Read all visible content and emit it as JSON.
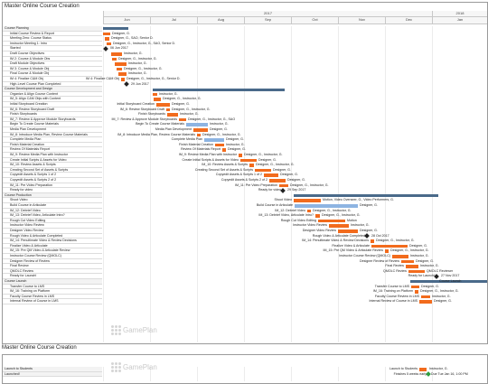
{
  "panel1": {
    "title": "Master Online Course Creation",
    "years": [
      "2017",
      "2018"
    ],
    "months": [
      "Jun",
      "Jul",
      "Aug",
      "Sep",
      "Oct",
      "Nov",
      "Dec",
      "Jan"
    ],
    "brand": "GamePlan",
    "rows": [
      {
        "label": "Course Planning",
        "level": 0
      },
      {
        "label": "Initial Course Review & Report",
        "level": 1,
        "bar": "orange",
        "text": "Designer, G."
      },
      {
        "label": "Meeting Zero: Course Status",
        "level": 1,
        "bar": "orange",
        "text": "Designer, G., SAO, Senior D."
      },
      {
        "label": "Instructor Meeting 1: Intro",
        "level": 1,
        "bar": "orange",
        "text": "Designer, G., Instructor, G., SAO, Senior D."
      },
      {
        "label": "Started",
        "level": 1,
        "ms": true,
        "text": "06 Jun 2017"
      },
      {
        "label": "Draft Course Objectives",
        "level": 1,
        "bar": "orange",
        "text": "Instructor, G."
      },
      {
        "label": "IM 2: Course & Module Obs",
        "level": 1,
        "bar": "orange",
        "text": "Designer, G., Instructor, G."
      },
      {
        "label": "Draft Module Objectives",
        "level": 1,
        "bar": "orange",
        "text": "Instructor, G."
      },
      {
        "label": "IM 3: Course & Module Obj",
        "level": 1,
        "bar": "orange",
        "text": "Designer, G., Instructor, G."
      },
      {
        "label": "Final Course & Module Obj",
        "level": 1,
        "bar": "orange",
        "text": "Instructor, G."
      },
      {
        "label": "IM 4: Finalize C&M Obj",
        "level": 1,
        "bar": "orange",
        "text": "Designer, G., Instructor, G., Senior D.",
        "left": "IM 4: Finalize C&M Obj"
      },
      {
        "label": "High-Level Course Plan Completed",
        "level": 1,
        "ms": true,
        "text": "29 Jun 2017"
      },
      {
        "label": "Course Development and Design",
        "level": 0
      },
      {
        "label": "Organize & Align Course Content",
        "level": 1,
        "bar": "orange",
        "text": "Instructor, G."
      },
      {
        "label": "IM_5: Align C&M Objs with Content",
        "level": 1,
        "bar": "orange",
        "text": "Designer, G., Instructor, G."
      },
      {
        "label": "Initial Storyboard Creation",
        "level": 1,
        "bar": "orange",
        "text": "Designer, G.",
        "left": "Initial Storyboard Creation"
      },
      {
        "label": "IM_6: Review Storyboard Draft",
        "level": 1,
        "bar": "orange",
        "text": "Designer, G., Instructor, G.",
        "left": "IM_6: Review Storyboard Draft"
      },
      {
        "label": "Finish Storyboards",
        "level": 1,
        "bar": "orange",
        "text": "Instructor, G.",
        "left": "Finish Storyboards"
      },
      {
        "label": "IM_7: Review & Approve Module Storyboards",
        "level": 1,
        "bar": "orange",
        "text": "Designer, G., Instructor, G., SAO",
        "left": "IM_7: Review & Approve Module Storyboards"
      },
      {
        "label": "Begin To Create Course Materials",
        "level": 1,
        "bar": "blue",
        "text": "Instructor, G.",
        "left": "Begin To Create Course Materials"
      },
      {
        "label": "Media Plan Development",
        "level": 1,
        "bar": "orange",
        "text": "Designer, G.",
        "left": "Media Plan Development"
      },
      {
        "label": "IM_8: Introduce Media Plan, Review Course Materials",
        "level": 1,
        "bar": "orange",
        "text": "Designer, G., Instructor, G.",
        "left": "IM_8: Introduce Media Plan, Review Course Materials"
      },
      {
        "label": "Complete Media Plan",
        "level": 1,
        "bar": "blue",
        "text": "Designer, G.",
        "left": "Complete Media Plan"
      },
      {
        "label": "Finish Material Creation",
        "level": 1,
        "bar": "orange",
        "text": "Instructor, G.",
        "left": "Finish Material Creation"
      },
      {
        "label": "Review Of Materials Report",
        "level": 1,
        "bar": "orange",
        "text": "Designer, G.",
        "left": "Review Of Materials Report"
      },
      {
        "label": "IM_9: Review Media Plan with Instructor",
        "level": 1,
        "bar": "orange",
        "text": "Designer, G., Instructor, G.",
        "left": "IM_9: Review Media Plan with Instructor"
      },
      {
        "label": "Create Initial Scripts & Assets for Video",
        "level": 1,
        "bar": "orange",
        "text": "Designer, G.",
        "left": "Create Initial Scripts & Assets for Video"
      },
      {
        "label": "IM_10: Review Assets & Scripts",
        "level": 1,
        "bar": "orange",
        "text": "Designer, G., Instructor, G.",
        "left": "IM_10: Review Assets & Scripts"
      },
      {
        "label": "Creating Second Set of Assets & Scripts",
        "level": 1,
        "bar": "orange",
        "text": "Designer, G.",
        "left": "Creating Second Set of Assets & Scripts"
      },
      {
        "label": "Copyedit Assets & Scripts 1 of 2",
        "level": 1,
        "bar": "orange",
        "text": "Designer, G.",
        "left": "Copyedit Assets & Scripts 1 of 2"
      },
      {
        "label": "Copyedit Assets & Scripts 2 of 2",
        "level": 1,
        "bar": "orange",
        "text": "Designer, G.",
        "left": "Copyedit Assets & Scripts 2 of 2"
      },
      {
        "label": "IM_11: Pre Video Preparation",
        "level": 1,
        "bar": "orange",
        "text": "Designer, G., Instructor, G.",
        "left": "IM_11: Pre Video Preparation"
      },
      {
        "label": "Ready for video",
        "level": 1,
        "ms": true,
        "text": "29 Sep 2017",
        "left": "Ready for video"
      },
      {
        "label": "Course Production",
        "level": 0
      },
      {
        "label": "Shoot Video",
        "level": 1,
        "bar": "orange",
        "text": "Motion, Video Overseer, G., Video Performers, G.",
        "left": "Shoot Video"
      },
      {
        "label": "Build Course in Articulate",
        "level": 1,
        "bar": "blue",
        "text": "Designer, G.",
        "left": "Build Course in Articulate"
      },
      {
        "label": "IM_12: Debrief Video",
        "level": 1,
        "bar": "orange",
        "text": "Designer, G., Instructor, G.",
        "left": "IM_12: Debrief Video"
      },
      {
        "label": "IM_13: Debrief Video, Articulate Intro?",
        "level": 1,
        "bar": "orange",
        "text": "Designer, G., Instructor, G.",
        "left": "IM_13: Debrief Video, Articulate Intro?"
      },
      {
        "label": "Rough Cut Video Editing",
        "level": 1,
        "bar": "orange",
        "text": "Motion",
        "left": "Rough Cut Video Editing"
      },
      {
        "label": "Instructor Video Review",
        "level": 1,
        "bar": "orange",
        "text": "Instructor, G.",
        "left": "Instructor Video Review"
      },
      {
        "label": "Designer Video Review",
        "level": 1,
        "bar": "orange",
        "text": "Designer, G.",
        "left": "Designer Video Review"
      },
      {
        "label": "Rough Video & Articulate Completed",
        "level": 1,
        "ms": true,
        "text": "28 Oct 2017",
        "left": "Rough Video & Articulate Completed"
      },
      {
        "label": "IM_14: Penultimate Video & Review Decisions",
        "level": 1,
        "bar": "orange",
        "text": "Designer, G., Instructor, G.",
        "left": "IM_14: Penultimate Video & Review Decisions"
      },
      {
        "label": "Finalize Video & Articulate",
        "level": 1,
        "bar": "orange",
        "text": "Designer, G.",
        "left": "Finalize Video & Articulate"
      },
      {
        "label": "IM_15: Pre QM Video & Articulate Review",
        "level": 1,
        "bar": "orange",
        "text": "Designer, G., Instructor, G.",
        "left": "IM_15: Pre QM Video & Articulate Review"
      },
      {
        "label": "Instructor Course Review (QMOLC)",
        "level": 1,
        "bar": "orange",
        "text": "Instructor, G.",
        "left": "Instructor Course Review (QMOLC)"
      },
      {
        "label": "Designer Review of Review",
        "level": 1,
        "bar": "orange",
        "text": "Designer, G.",
        "left": "Designer Review of Review"
      },
      {
        "label": "Final Review",
        "level": 1,
        "bar": "orange",
        "text": "Instructor, G.",
        "left": "Final Review"
      },
      {
        "label": "QMOLC Review",
        "level": 1,
        "bar": "orange",
        "text": "QMOLC Reviewer",
        "left": "QMOLC Review"
      },
      {
        "label": "Ready for Launch!",
        "level": 1,
        "ms": true,
        "text": "27 Nov 2017",
        "left": "Ready for Launch!"
      },
      {
        "label": "Course Launch",
        "level": 0,
        "right": "Course Launch"
      },
      {
        "label": "Transfer Course to LMS",
        "level": 1,
        "bar": "orange",
        "text": "Designer, G.",
        "left": "Transfer Course to LMS"
      },
      {
        "label": "IM_16: Training on Platform",
        "level": 1,
        "bar": "orange",
        "text": "Designer, G., Instructor, G.",
        "left": "IM_16: Training on Platform"
      },
      {
        "label": "Faculty Course Review in LMS",
        "level": 1,
        "bar": "orange",
        "text": "Instructor, G.",
        "left": "Faculty Course Review in LMS"
      },
      {
        "label": "Internal Review of Course in LMS",
        "level": 1,
        "bar": "orange",
        "text": "Designer, G.",
        "left": "Internal Review of Course in LMS"
      }
    ]
  },
  "panel2": {
    "title": "Master Online Course Creation",
    "brand": "GamePlan",
    "rows": [
      {
        "label": "Launch to Students",
        "left": "Launch to Students",
        "text": "Instructor, G."
      },
      {
        "label": "Launched!",
        "left": "Finishes 5 weeks early",
        "text": "Due Tue Jan 16, 1:00 PM"
      }
    ]
  },
  "colors": {
    "orange": "#f26b1d",
    "blue": "#8db4e2",
    "summary": "#4a6a8a"
  }
}
